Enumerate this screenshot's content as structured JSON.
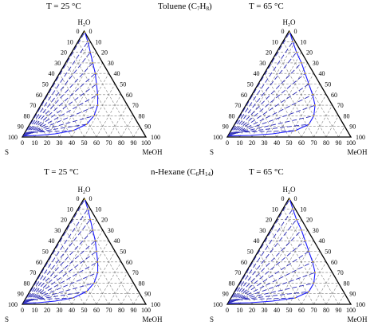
{
  "figure": {
    "rows": [
      {
        "solvent_label": "Toluene (C",
        "solvent_sub": "7",
        "solvent_mid": "H",
        "solvent_sub2": "8",
        "solvent_end": ")"
      },
      {
        "solvent_label": "n-Hexane (C",
        "solvent_sub": "6",
        "solvent_mid": "H",
        "solvent_sub2": "14",
        "solvent_end": ")"
      }
    ],
    "panels": [
      {
        "temp_label": "T = 25 °C",
        "row": 0,
        "col": 0
      },
      {
        "temp_label": "T = 65 °C",
        "row": 0,
        "col": 1
      },
      {
        "temp_label": "T = 25 °C",
        "row": 1,
        "col": 0
      },
      {
        "temp_label": "T = 65 °C",
        "row": 1,
        "col": 1
      }
    ],
    "vertices": {
      "top": "H",
      "top_sub": "2",
      "top_end": "O",
      "left": "S",
      "right": "MeOH"
    },
    "ticks": [
      "0",
      "10",
      "20",
      "30",
      "40",
      "50",
      "60",
      "70",
      "80",
      "90",
      "100"
    ],
    "colors": {
      "frame": "#000000",
      "grid": "#7f7f7f",
      "binodal": "#1a1aff",
      "tie_line": "#2a2ab8",
      "tie_point": "#c8a020"
    }
  }
}
